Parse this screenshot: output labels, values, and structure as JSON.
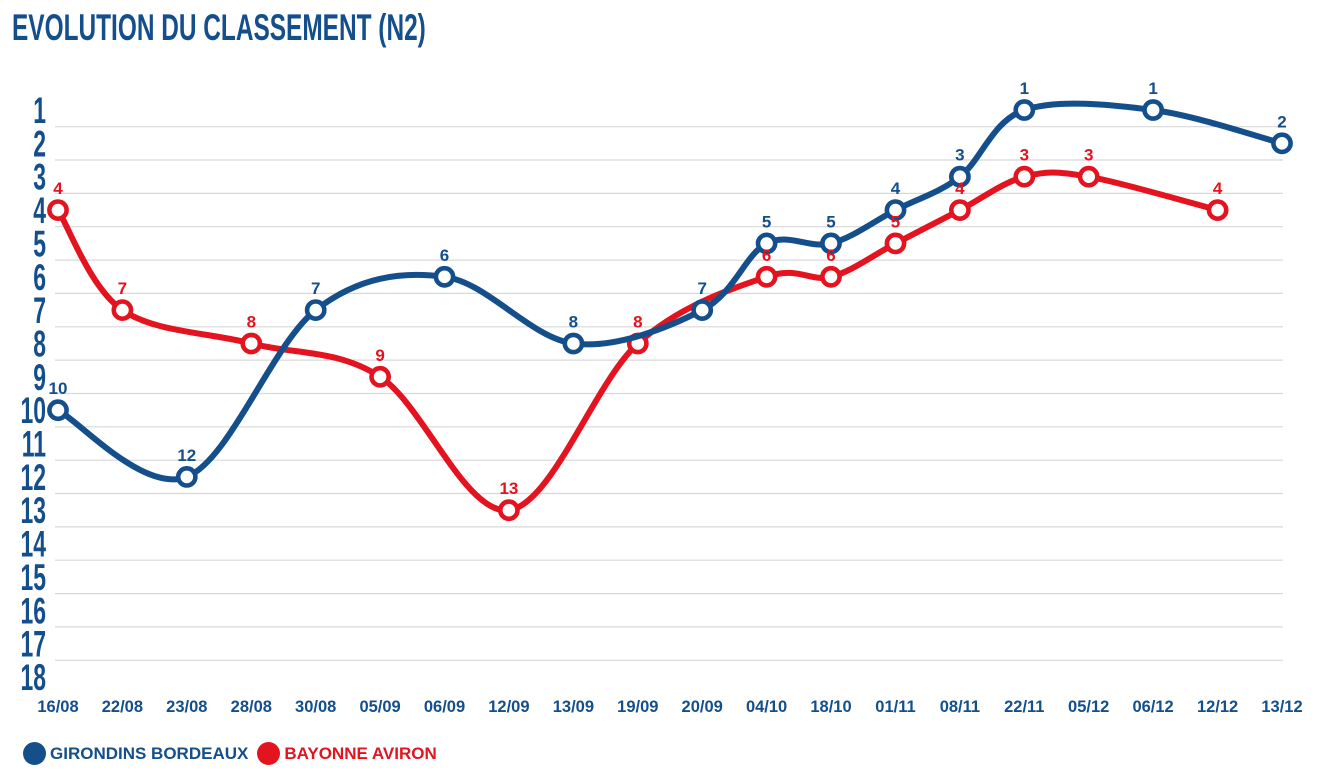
{
  "title": "EVOLUTION DU CLASSEMENT (N2)",
  "colors": {
    "primary_blue": "#144f8c",
    "accent_red": "#e31320",
    "grid": "#d8d8d8",
    "marker_fill": "#ffffff",
    "background": "#ffffff"
  },
  "chart_data": {
    "type": "line",
    "title": "EVOLUTION DU CLASSEMENT (N2)",
    "line_style": "smooth",
    "grid": "horizontal-between-ranks",
    "legend_position": "bottom-left",
    "x_categories": [
      "16/08",
      "22/08",
      "23/08",
      "28/08",
      "30/08",
      "05/09",
      "06/09",
      "12/09",
      "13/09",
      "19/09",
      "20/09",
      "04/10",
      "18/10",
      "01/11",
      "08/11",
      "22/11",
      "05/12",
      "06/12",
      "12/12",
      "13/12"
    ],
    "y_axis": {
      "min": 1,
      "max": 18,
      "tick_step": 1,
      "inverted": true,
      "ticks": [
        1,
        2,
        3,
        4,
        5,
        6,
        7,
        8,
        9,
        10,
        11,
        12,
        13,
        14,
        15,
        16,
        17,
        18
      ]
    },
    "series": [
      {
        "id": "girondins-bordeaux",
        "name": "GIRONDINS BORDEAUX",
        "color": "#144f8c",
        "marker": "hollow-circle",
        "points": [
          {
            "date": "16/08",
            "value": 10
          },
          {
            "date": "23/08",
            "value": 12
          },
          {
            "date": "30/08",
            "value": 7
          },
          {
            "date": "06/09",
            "value": 6
          },
          {
            "date": "13/09",
            "value": 8
          },
          {
            "date": "20/09",
            "value": 7
          },
          {
            "date": "04/10",
            "value": 5
          },
          {
            "date": "18/10",
            "value": 5
          },
          {
            "date": "01/11",
            "value": 4
          },
          {
            "date": "08/11",
            "value": 3
          },
          {
            "date": "22/11",
            "value": 1
          },
          {
            "date": "06/12",
            "value": 1
          },
          {
            "date": "13/12",
            "value": 2
          }
        ]
      },
      {
        "id": "bayonne-aviron",
        "name": "BAYONNE AVIRON",
        "color": "#e31320",
        "marker": "hollow-circle",
        "points": [
          {
            "date": "16/08",
            "value": 4
          },
          {
            "date": "22/08",
            "value": 7
          },
          {
            "date": "28/08",
            "value": 8
          },
          {
            "date": "05/09",
            "value": 9
          },
          {
            "date": "12/09",
            "value": 13
          },
          {
            "date": "19/09",
            "value": 8
          },
          {
            "date": "04/10",
            "value": 6
          },
          {
            "date": "18/10",
            "value": 6
          },
          {
            "date": "01/11",
            "value": 5
          },
          {
            "date": "08/11",
            "value": 4
          },
          {
            "date": "22/11",
            "value": 3
          },
          {
            "date": "05/12",
            "value": 3
          },
          {
            "date": "12/12",
            "value": 4
          }
        ]
      }
    ]
  },
  "legend": {
    "items": [
      {
        "id": "girondins-bordeaux",
        "label": "GIRONDINS BORDEAUX",
        "color": "#144f8c"
      },
      {
        "id": "bayonne-aviron",
        "label": "BAYONNE AVIRON",
        "color": "#e31320"
      }
    ]
  }
}
